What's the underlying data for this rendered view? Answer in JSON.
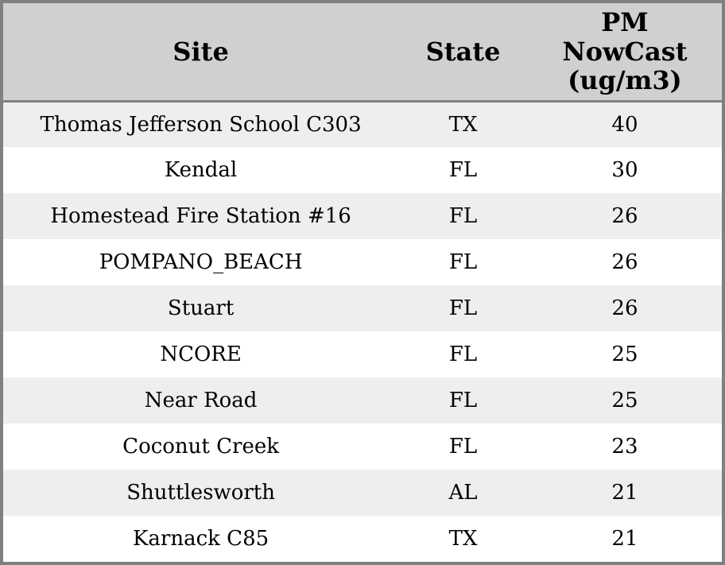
{
  "colors": {
    "border": "#808080",
    "header_bg": "#d0d0d0",
    "row_stripe_bg": "#eeeeee",
    "row_bg": "#ffffff",
    "text": "#000000"
  },
  "table": {
    "columns": [
      {
        "label": "Site"
      },
      {
        "label": "State"
      },
      {
        "label": "PM NowCast (ug/m3)"
      }
    ],
    "rows": [
      {
        "site": "Thomas Jefferson School C303",
        "state": "TX",
        "pm_nowcast": "40"
      },
      {
        "site": "Kendal",
        "state": "FL",
        "pm_nowcast": "30"
      },
      {
        "site": "Homestead Fire Station #16",
        "state": "FL",
        "pm_nowcast": "26"
      },
      {
        "site": "POMPANO_BEACH",
        "state": "FL",
        "pm_nowcast": "26"
      },
      {
        "site": "Stuart",
        "state": "FL",
        "pm_nowcast": "26"
      },
      {
        "site": "NCORE",
        "state": "FL",
        "pm_nowcast": "25"
      },
      {
        "site": "Near Road",
        "state": "FL",
        "pm_nowcast": "25"
      },
      {
        "site": "Coconut Creek",
        "state": "FL",
        "pm_nowcast": "23"
      },
      {
        "site": "Shuttlesworth",
        "state": "AL",
        "pm_nowcast": "21"
      },
      {
        "site": "Karnack C85",
        "state": "TX",
        "pm_nowcast": "21"
      }
    ]
  },
  "chart_data": {
    "type": "table",
    "title": "",
    "columns": [
      "Site",
      "State",
      "PM NowCast (ug/m3)"
    ],
    "categories": [
      "Thomas Jefferson School C303",
      "Kendal",
      "Homestead Fire Station #16",
      "POMPANO_BEACH",
      "Stuart",
      "NCORE",
      "Near Road",
      "Coconut Creek",
      "Shuttlesworth",
      "Karnack C85"
    ],
    "states": [
      "TX",
      "FL",
      "FL",
      "FL",
      "FL",
      "FL",
      "FL",
      "FL",
      "AL",
      "TX"
    ],
    "values": [
      40,
      30,
      26,
      26,
      26,
      25,
      25,
      23,
      21,
      21
    ],
    "value_label": "PM NowCast (ug/m3)"
  }
}
